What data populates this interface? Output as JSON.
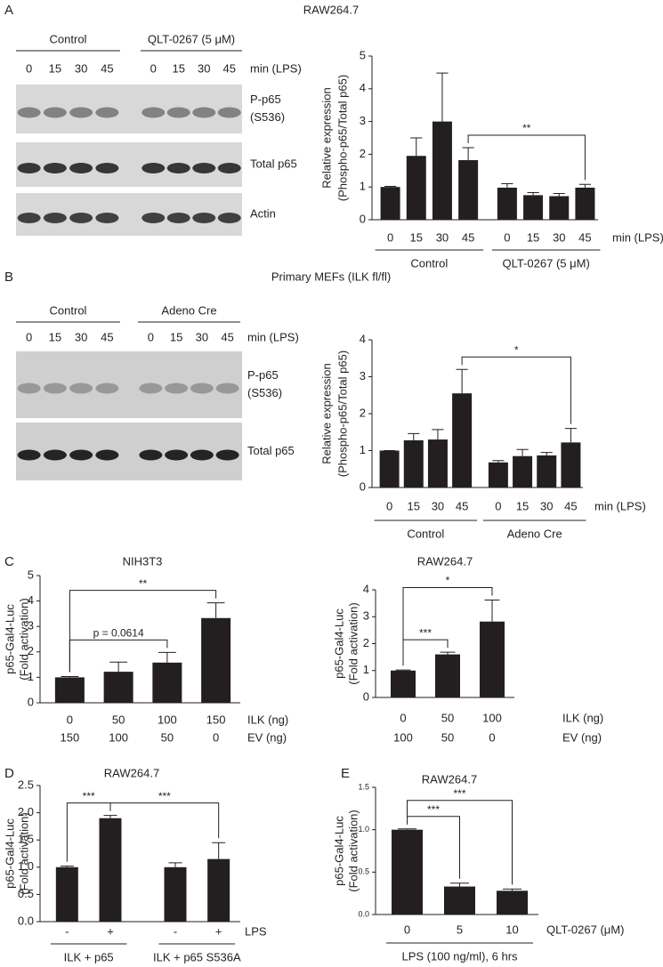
{
  "panels": [
    {
      "letter": "A",
      "title": "RAW264.7"
    },
    {
      "letter": "B",
      "title": "Primary MEFs (ILK fl/fl)"
    },
    {
      "letter": "C"
    },
    {
      "letter": "D"
    },
    {
      "letter": "E"
    }
  ],
  "blots": [
    {
      "groups": [
        "Control",
        "QLT-0267 (5 μM)"
      ],
      "lanes": [
        "0",
        "15",
        "30",
        "45",
        "0",
        "15",
        "30",
        "45"
      ],
      "lane_label": "min (LPS)",
      "rows": [
        {
          "label": [
            "P-p65",
            "(S536)"
          ]
        },
        {
          "label": [
            "Total p65"
          ]
        },
        {
          "label": [
            "Actin"
          ]
        }
      ]
    },
    {
      "groups": [
        "Control",
        "Adeno Cre"
      ],
      "lanes": [
        "0",
        "15",
        "30",
        "45",
        "0",
        "15",
        "30",
        "45"
      ],
      "lane_label": "min (LPS)",
      "rows": [
        {
          "label": [
            "P-p65",
            "(S536)"
          ]
        },
        {
          "label": [
            "Total p65"
          ]
        }
      ]
    }
  ],
  "chart_data": [
    {
      "type": "bar",
      "ylabel": [
        "Relative expression",
        "(Phospho-p65/Total p65)"
      ],
      "xlabel": "min (LPS)",
      "categories": [
        "0",
        "15",
        "30",
        "45",
        "0",
        "15",
        "30",
        "45"
      ],
      "groups": [
        "Control",
        "QLT-0267 (5 μM)"
      ],
      "values": [
        1.0,
        1.95,
        3.0,
        1.82,
        0.98,
        0.75,
        0.72,
        0.98
      ],
      "errors": [
        0.02,
        0.55,
        1.48,
        0.38,
        0.12,
        0.08,
        0.08,
        0.1
      ],
      "color": "#231f20",
      "ylim": [
        0,
        5
      ],
      "yticks": [
        0,
        1,
        2,
        3,
        4,
        5
      ],
      "brackets": [
        {
          "label": "**",
          "between": [
            3,
            7
          ]
        }
      ]
    },
    {
      "type": "bar",
      "ylabel": [
        "Relative expression",
        "(Phospho-p65/Total p65)"
      ],
      "xlabel": "min (LPS)",
      "categories": [
        "0",
        "15",
        "30",
        "45",
        "0",
        "15",
        "30",
        "45"
      ],
      "groups": [
        "Control",
        "Adeno Cre"
      ],
      "values": [
        1.0,
        1.28,
        1.3,
        2.55,
        0.68,
        0.85,
        0.87,
        1.22
      ],
      "errors": [
        0.0,
        0.18,
        0.27,
        0.65,
        0.05,
        0.18,
        0.08,
        0.38
      ],
      "color": "#231f20",
      "ylim": [
        0,
        4
      ],
      "yticks": [
        0,
        1,
        2,
        3,
        4
      ],
      "brackets": [
        {
          "label": "*",
          "between": [
            3,
            7
          ]
        }
      ]
    },
    {
      "type": "bar",
      "title": "NIH3T3",
      "ylabel": [
        "p65-Gal4-Luc",
        "(Fold activation)"
      ],
      "categories": [
        "0",
        "50",
        "100",
        "150"
      ],
      "xlabel": "ILK (ng)",
      "categories2": [
        "150",
        "100",
        "50",
        "0"
      ],
      "xlabel2": "EV (ng)",
      "values": [
        1.0,
        1.22,
        1.58,
        3.33
      ],
      "errors": [
        0.03,
        0.38,
        0.4,
        0.6
      ],
      "color": "#231f20",
      "ylim": [
        0,
        5
      ],
      "yticks": [
        0,
        1,
        2,
        3,
        4,
        5
      ],
      "brackets": [
        {
          "label": "**",
          "between": [
            0,
            3
          ]
        },
        {
          "label": "p = 0.0614",
          "between": [
            0,
            2
          ]
        }
      ]
    },
    {
      "type": "bar",
      "title": "RAW264.7",
      "ylabel": [
        "p65-Gal4-Luc",
        "(Fold activation)"
      ],
      "categories": [
        "0",
        "50",
        "100"
      ],
      "xlabel": "ILK (ng)",
      "categories2": [
        "100",
        "50",
        "0"
      ],
      "xlabel2": "EV (ng)",
      "values": [
        1.0,
        1.6,
        2.82
      ],
      "errors": [
        0.02,
        0.08,
        0.8
      ],
      "color": "#231f20",
      "ylim": [
        0,
        4
      ],
      "yticks": [
        0,
        1,
        2,
        3,
        4
      ],
      "brackets": [
        {
          "label": "*",
          "between": [
            0,
            2
          ]
        },
        {
          "label": "***",
          "between": [
            0,
            1
          ]
        }
      ]
    },
    {
      "type": "bar",
      "title": "RAW264.7",
      "ylabel": [
        "p65-Gal4-Luc",
        "(Fold activation)"
      ],
      "categories": [
        "-",
        "+",
        "-",
        "+"
      ],
      "xlabel": "LPS",
      "groups": [
        "ILK + p65",
        "ILK + p65 S536A"
      ],
      "values": [
        1.0,
        1.9,
        1.0,
        1.15
      ],
      "errors": [
        0.02,
        0.05,
        0.08,
        0.3
      ],
      "color": "#231f20",
      "ylim": [
        0,
        2.5
      ],
      "yticks": [
        {
          "value": 0,
          "label": "0.0"
        },
        0.5,
        {
          "value": 1,
          "label": "1.0"
        },
        1.5,
        {
          "value": 2,
          "label": "2.0"
        },
        2.5
      ],
      "brackets": [
        {
          "label": "***",
          "between": [
            0,
            1
          ]
        },
        {
          "label": "***",
          "between": [
            1,
            3
          ]
        }
      ]
    },
    {
      "type": "bar",
      "title": "RAW264.7",
      "ylabel": [
        "p65-Gal4-Luc",
        "(Fold activation)"
      ],
      "categories": [
        "0",
        "5",
        "10"
      ],
      "xlabel": "QLT-0267 (μM)",
      "groups": [
        "LPS (100 ng/ml), 6 hrs"
      ],
      "values": [
        1.0,
        0.33,
        0.28
      ],
      "errors": [
        0.01,
        0.04,
        0.02
      ],
      "color": "#231f20",
      "ylim": [
        0,
        1.5
      ],
      "yticks": [
        {
          "value": 0,
          "label": "0.0"
        },
        0.5,
        {
          "value": 1,
          "label": "1.0"
        },
        1.5
      ],
      "brackets": [
        {
          "label": "***",
          "between": [
            0,
            1
          ]
        },
        {
          "label": "***",
          "between": [
            0,
            2
          ]
        }
      ]
    }
  ]
}
